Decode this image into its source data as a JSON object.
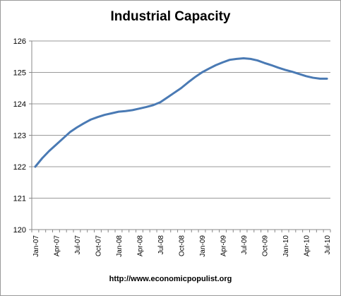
{
  "chart_data": {
    "type": "line",
    "title": "Industrial Capacity",
    "xlabel": "",
    "ylabel": "",
    "ylim": [
      120,
      126
    ],
    "yticks": [
      120,
      121,
      122,
      123,
      124,
      125,
      126
    ],
    "tick_labels": [
      "Jan-07",
      "Apr-07",
      "Jul-07",
      "Oct-07",
      "Jan-08",
      "Apr-08",
      "Jul-08",
      "Oct-08",
      "Jan-09",
      "Apr-09",
      "Jul-09",
      "Oct-09",
      "Jan-10",
      "Apr-10",
      "Jul-10"
    ],
    "x": [
      "Jan-07",
      "Feb-07",
      "Mar-07",
      "Apr-07",
      "May-07",
      "Jun-07",
      "Jul-07",
      "Aug-07",
      "Sep-07",
      "Oct-07",
      "Nov-07",
      "Dec-07",
      "Jan-08",
      "Feb-08",
      "Mar-08",
      "Apr-08",
      "May-08",
      "Jun-08",
      "Jul-08",
      "Aug-08",
      "Sep-08",
      "Oct-08",
      "Nov-08",
      "Dec-08",
      "Jan-09",
      "Feb-09",
      "Mar-09",
      "Apr-09",
      "May-09",
      "Jun-09",
      "Jul-09",
      "Aug-09",
      "Sep-09",
      "Oct-09",
      "Nov-09",
      "Dec-09",
      "Jan-10",
      "Feb-10",
      "Mar-10",
      "Apr-10",
      "May-10",
      "Jun-10",
      "Jul-10"
    ],
    "series": [
      {
        "values": [
          122.0,
          122.27,
          122.5,
          122.7,
          122.9,
          123.1,
          123.25,
          123.38,
          123.5,
          123.58,
          123.65,
          123.7,
          123.75,
          123.77,
          123.8,
          123.85,
          123.9,
          123.96,
          124.05,
          124.2,
          124.35,
          124.5,
          124.68,
          124.85,
          125.0,
          125.12,
          125.23,
          125.32,
          125.4,
          125.43,
          125.45,
          125.43,
          125.38,
          125.3,
          125.23,
          125.15,
          125.08,
          125.02,
          124.95,
          124.88,
          124.83,
          124.8,
          124.8
        ]
      }
    ],
    "grid": true,
    "legend": "none",
    "line_color": "#4a7ab4",
    "gridline_color": "#9a9a9a",
    "footer": "http://www.economicpopulist.org"
  }
}
